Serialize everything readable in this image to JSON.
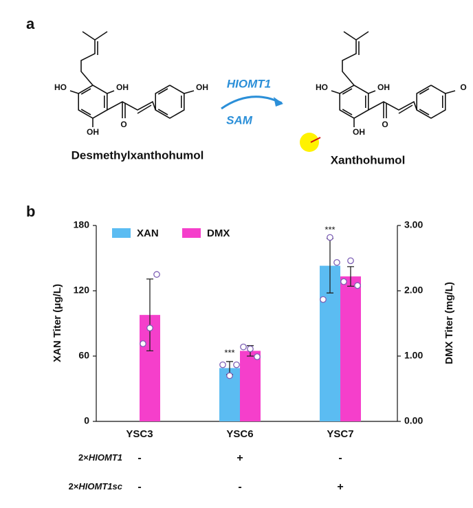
{
  "panel_labels": [
    "a",
    "b"
  ],
  "reaction": {
    "substrate": "Desmethylxanthohumol",
    "product": "Xanthohumol",
    "enzyme": "HIOMT1",
    "cofactor": "SAM",
    "substrate_atoms": [
      "HO",
      "OH",
      "OH",
      "OH",
      "O"
    ],
    "product_atoms": [
      "HO",
      "OH",
      "OH",
      "O",
      "O"
    ]
  },
  "chart_data": {
    "type": "bar",
    "categories": [
      "YSC3",
      "YSC6",
      "YSC7"
    ],
    "ylabel": "XAN Titer (μg/L)",
    "y2label": "DMX Titer (mg/L)",
    "ylim": [
      0,
      180
    ],
    "yticks": [
      0,
      60,
      120,
      180
    ],
    "y2lim": [
      0,
      3
    ],
    "y2ticks": [
      {
        "value": 0,
        "label": "0.00"
      },
      {
        "value": 1,
        "label": "1.00"
      },
      {
        "value": 2,
        "label": "2.00"
      },
      {
        "value": 3,
        "label": "3.00"
      }
    ],
    "legend": "top-left",
    "series": [
      {
        "name": "XAN",
        "color": "#5bbcf2",
        "axis": "y",
        "values": [
          0,
          49,
          143
        ],
        "errors": [
          null,
          6,
          25
        ],
        "points": [
          null,
          [
            52,
            42,
            52
          ],
          [
            112,
            169,
            146
          ]
        ]
      },
      {
        "name": "DMX",
        "color": "#f53fcb",
        "axis": "y2",
        "values": [
          1.63,
          1.08,
          2.22
        ],
        "errors": [
          0.55,
          0.08,
          0.15
        ],
        "points": [
          [
            1.19,
            1.43,
            2.25
          ],
          [
            1.14,
            1.11,
            0.99
          ],
          [
            2.14,
            2.46,
            2.08
          ]
        ]
      }
    ],
    "annotations": [
      {
        "text": "***",
        "category": "YSC6"
      },
      {
        "text": "***",
        "category": "YSC7"
      }
    ],
    "genotype_rows": [
      {
        "prefix": "2×",
        "gene": "HIOMT1",
        "marks": [
          "-",
          "+",
          "-"
        ]
      },
      {
        "prefix": "2×",
        "gene": "HIOMT1sc",
        "marks": [
          "-",
          "-",
          "+"
        ]
      }
    ]
  }
}
